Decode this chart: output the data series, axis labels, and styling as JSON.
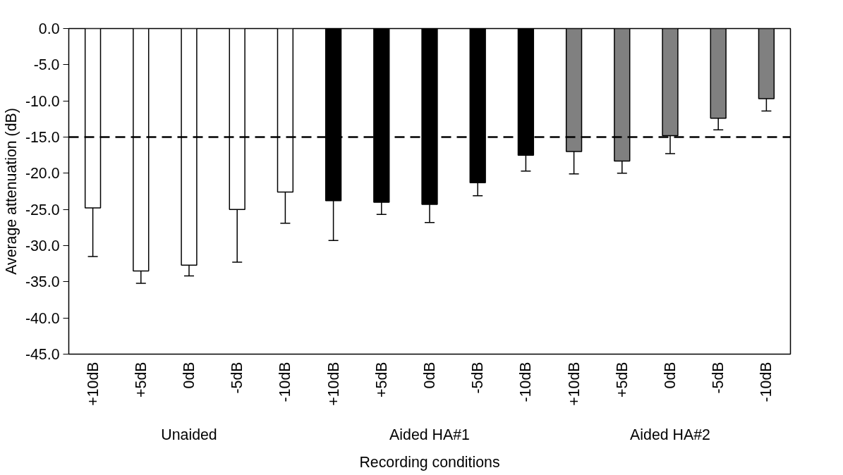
{
  "chart_data": {
    "type": "bar",
    "xlabel": "Recording conditions",
    "ylabel": "Average attenuation (dB)",
    "categories": [
      "+10dB",
      "+5dB",
      "0dB",
      "-5dB",
      "-10dB",
      "+10dB",
      "+5dB",
      "0dB",
      "-5dB",
      "-10dB",
      "+10dB",
      "+5dB",
      "0dB",
      "-5dB",
      "-10dB"
    ],
    "values": [
      -24.8,
      -33.5,
      -32.7,
      -25.0,
      -22.6,
      -23.8,
      -24.0,
      -24.3,
      -21.3,
      -17.5,
      -17.0,
      -18.3,
      -14.8,
      -12.4,
      -9.7
    ],
    "errors": [
      6.7,
      1.7,
      1.5,
      7.3,
      4.3,
      5.5,
      1.7,
      2.5,
      1.8,
      2.2,
      3.1,
      1.7,
      2.5,
      1.6,
      1.7
    ],
    "colors": [
      "#ffffff",
      "#ffffff",
      "#ffffff",
      "#ffffff",
      "#ffffff",
      "#000000",
      "#000000",
      "#000000",
      "#000000",
      "#000000",
      "#808080",
      "#808080",
      "#808080",
      "#808080",
      "#808080"
    ],
    "annotations": [
      "Unaided",
      "Aided HA#1",
      "Aided HA#2"
    ],
    "ylim": [
      -45,
      0
    ],
    "yticks": [
      {
        "value": 0,
        "label": "0.0"
      },
      {
        "value": -5,
        "label": "-5.0"
      },
      {
        "value": -10,
        "label": "-10.0"
      },
      {
        "value": -15,
        "label": "-15.0"
      },
      {
        "value": -20,
        "label": "-20.0"
      },
      {
        "value": -25,
        "label": "-25.0"
      },
      {
        "value": -30,
        "label": "-30.0"
      },
      {
        "value": -35,
        "label": "-35.0"
      },
      {
        "value": -40,
        "label": "-40.0"
      },
      {
        "value": -45,
        "label": "-45.0"
      }
    ],
    "ref_lines": [
      {
        "axis": "y",
        "value": -15,
        "label": null,
        "color": "#000000",
        "line_style": "dashed"
      }
    ],
    "grid": false
  }
}
